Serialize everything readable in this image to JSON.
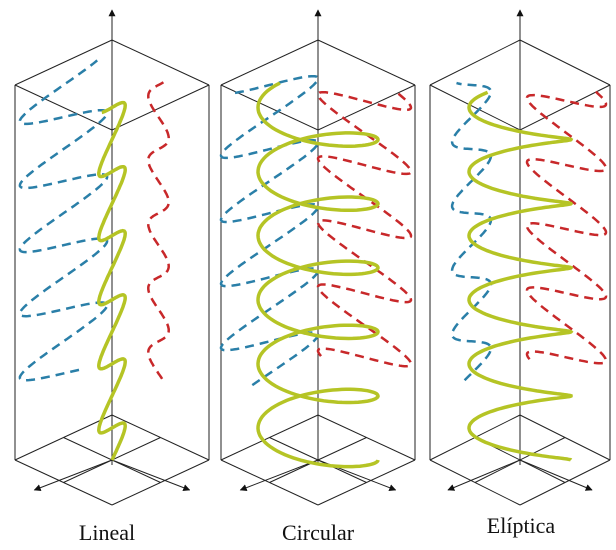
{
  "panels": [
    {
      "label": "Lineal"
    },
    {
      "label": "Circular"
    },
    {
      "label": "Elíptica"
    }
  ]
}
